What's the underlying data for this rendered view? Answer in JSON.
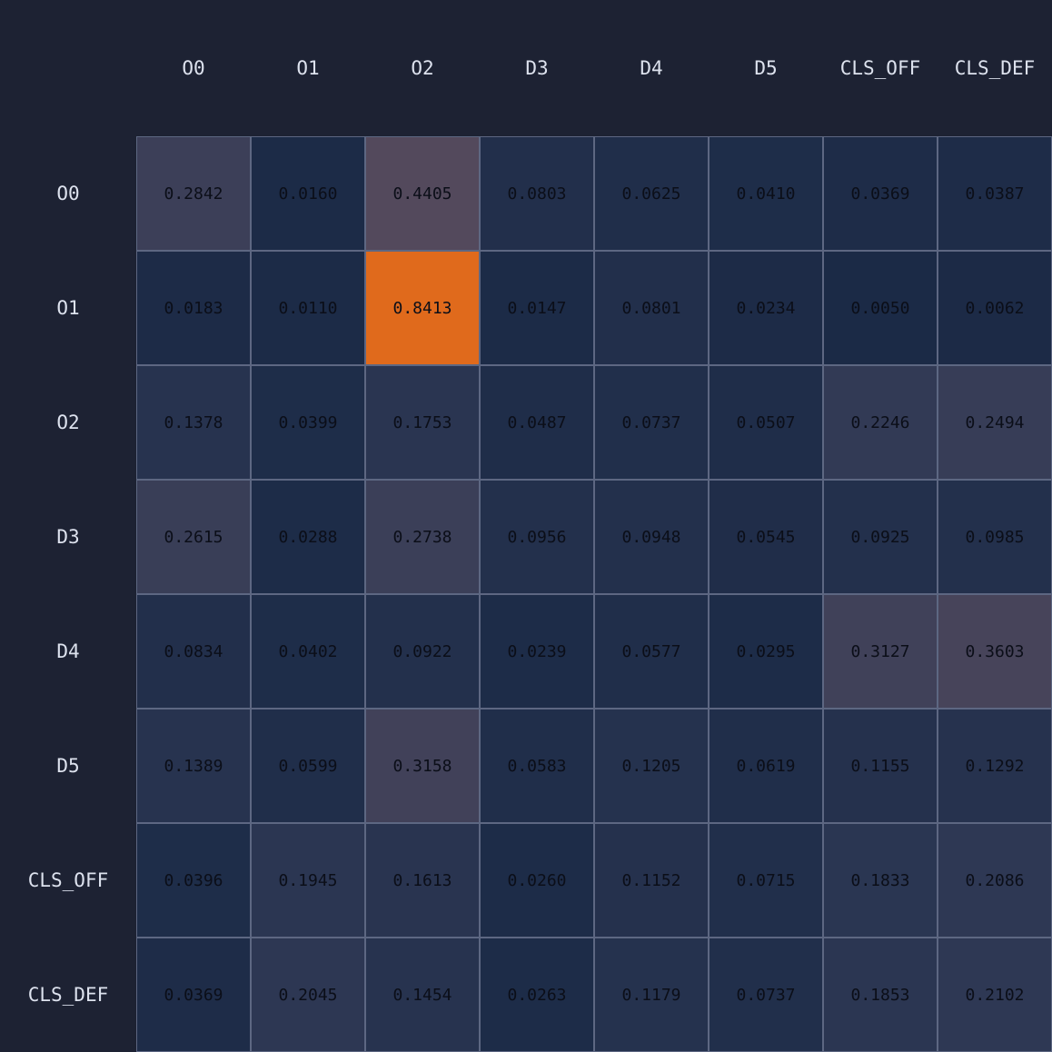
{
  "chart_data": {
    "type": "heatmap",
    "x_labels": [
      "O0",
      "O1",
      "O2",
      "D3",
      "D4",
      "D5",
      "CLS_OFF",
      "CLS_DEF"
    ],
    "y_labels": [
      "O0",
      "O1",
      "O2",
      "D3",
      "D4",
      "D5",
      "CLS_OFF",
      "CLS_DEF"
    ],
    "values": [
      [
        0.2842,
        0.016,
        0.4405,
        0.0803,
        0.0625,
        0.041,
        0.0369,
        0.0387
      ],
      [
        0.0183,
        0.011,
        0.8413,
        0.0147,
        0.0801,
        0.0234,
        0.005,
        0.0062
      ],
      [
        0.1378,
        0.0399,
        0.1753,
        0.0487,
        0.0737,
        0.0507,
        0.2246,
        0.2494
      ],
      [
        0.2615,
        0.0288,
        0.2738,
        0.0956,
        0.0948,
        0.0545,
        0.0925,
        0.0985
      ],
      [
        0.0834,
        0.0402,
        0.0922,
        0.0239,
        0.0577,
        0.0295,
        0.3127,
        0.3603
      ],
      [
        0.1389,
        0.0599,
        0.3158,
        0.0583,
        0.1205,
        0.0619,
        0.1155,
        0.1292
      ],
      [
        0.0396,
        0.1945,
        0.1613,
        0.026,
        0.1152,
        0.0715,
        0.1833,
        0.2086
      ],
      [
        0.0369,
        0.2045,
        0.1454,
        0.0263,
        0.1179,
        0.0737,
        0.1853,
        0.2102
      ]
    ],
    "value_format": "4 decimals",
    "colors": {
      "background": "#1d2233",
      "low": "#1b2a46",
      "high": "#e06a1c",
      "grid": "#5d6782"
    }
  }
}
